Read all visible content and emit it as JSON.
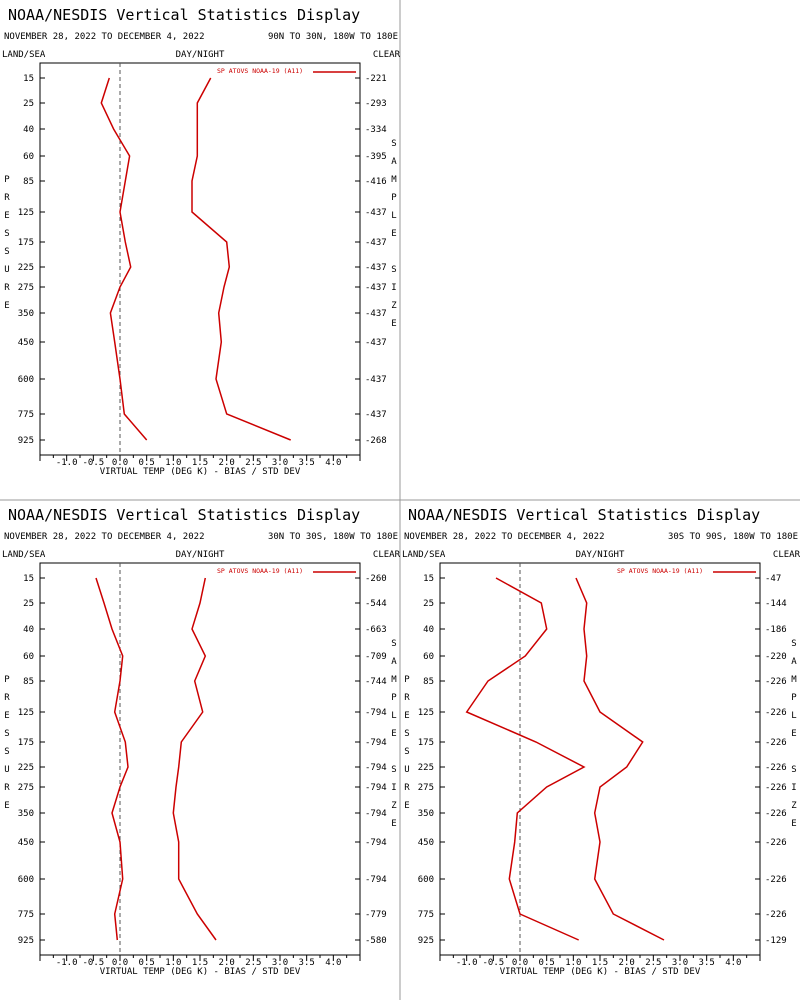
{
  "layout_labels": {
    "land_sea": "LAND/SEA",
    "day_night": "DAY/NIGHT",
    "clear": "CLEAR",
    "pressure_letters": [
      "P",
      "R",
      "E",
      "S",
      "S",
      "U",
      "R",
      "E"
    ],
    "sample_letters": [
      "S",
      "A",
      "M",
      "P",
      "L",
      "E"
    ],
    "size_letters": [
      "S",
      "I",
      "Z",
      "E"
    ]
  },
  "colors": {
    "series": "#cc0000",
    "axis": "#000000",
    "zero_line": "#555555",
    "separator": "#999999"
  },
  "chart_data": [
    {
      "type": "line",
      "title": "NOAA/NESDIS Vertical Statistics Display",
      "date_range": "NOVEMBER 28, 2022 TO DECEMBER 4, 2022",
      "region": "90N TO 30N, 180W TO 180E",
      "xlabel": "VIRTUAL TEMP (DEG K) - BIAS / STD DEV",
      "ylabel": "PRESSURE",
      "y2label": "SAMPLE SIZE",
      "xlim": [
        -1.5,
        4.5
      ],
      "xticks": [
        -1.0,
        -0.5,
        0.0,
        0.5,
        1.0,
        1.5,
        2.0,
        2.5,
        3.0,
        3.5,
        4.0
      ],
      "pressure_levels": [
        "15",
        "25",
        "40",
        "60",
        "85",
        "125",
        "175",
        "225",
        "275",
        "350",
        "450",
        "600",
        "775",
        "925"
      ],
      "sample_size": [
        "221",
        "293",
        "334",
        "395",
        "416",
        "437",
        "437",
        "437",
        "437",
        "437",
        "437",
        "437",
        "437",
        "268"
      ],
      "series": [
        {
          "name": "SP ATOVS NOAA-19 (A11)",
          "bias": [
            -0.2,
            -0.35,
            -0.12,
            0.18,
            0.1,
            0.0,
            0.1,
            0.2,
            0.0,
            -0.18,
            -0.1,
            0.0,
            0.08,
            0.5
          ],
          "stddev": [
            1.7,
            1.45,
            1.45,
            1.45,
            1.35,
            1.35,
            2.0,
            2.05,
            1.95,
            1.85,
            1.9,
            1.8,
            2.0,
            3.2
          ]
        }
      ]
    },
    {
      "type": "line",
      "title": "NOAA/NESDIS Vertical Statistics Display",
      "date_range": "NOVEMBER 28, 2022 TO DECEMBER 4, 2022",
      "region": "30N TO 30S, 180W TO 180E",
      "xlabel": "VIRTUAL TEMP (DEG K) - BIAS / STD DEV",
      "ylabel": "PRESSURE",
      "y2label": "SAMPLE SIZE",
      "xlim": [
        -1.5,
        4.5
      ],
      "xticks": [
        -1.0,
        -0.5,
        0.0,
        0.5,
        1.0,
        1.5,
        2.0,
        2.5,
        3.0,
        3.5,
        4.0
      ],
      "pressure_levels": [
        "15",
        "25",
        "40",
        "60",
        "85",
        "125",
        "175",
        "225",
        "275",
        "350",
        "450",
        "600",
        "775",
        "925"
      ],
      "sample_size": [
        "260",
        "544",
        "663",
        "709",
        "744",
        "794",
        "794",
        "794",
        "794",
        "794",
        "794",
        "794",
        "779",
        "580"
      ],
      "series": [
        {
          "name": "SP ATOVS NOAA-19 (A11)",
          "bias": [
            -0.45,
            -0.3,
            -0.15,
            0.05,
            0.0,
            -0.1,
            0.1,
            0.15,
            0.0,
            -0.15,
            0.0,
            0.05,
            -0.1,
            -0.05
          ],
          "stddev": [
            1.6,
            1.5,
            1.35,
            1.6,
            1.4,
            1.55,
            1.15,
            1.1,
            1.05,
            1.0,
            1.1,
            1.1,
            1.45,
            1.8
          ]
        }
      ]
    },
    {
      "type": "line",
      "title": "NOAA/NESDIS Vertical Statistics Display",
      "date_range": "NOVEMBER 28, 2022 TO DECEMBER 4, 2022",
      "region": "30S TO 90S, 180W TO 180E",
      "xlabel": "VIRTUAL TEMP (DEG K) - BIAS / STD DEV",
      "ylabel": "PRESSURE",
      "y2label": "SAMPLE SIZE",
      "xlim": [
        -1.5,
        4.5
      ],
      "xticks": [
        -1.0,
        -0.5,
        0.0,
        0.5,
        1.0,
        1.5,
        2.0,
        2.5,
        3.0,
        3.5,
        4.0
      ],
      "pressure_levels": [
        "15",
        "25",
        "40",
        "60",
        "85",
        "125",
        "175",
        "225",
        "275",
        "350",
        "450",
        "600",
        "775",
        "925"
      ],
      "sample_size": [
        "47",
        "144",
        "186",
        "220",
        "226",
        "226",
        "226",
        "226",
        "226",
        "226",
        "226",
        "226",
        "226",
        "129"
      ],
      "series": [
        {
          "name": "SP ATOVS NOAA-19 (A11)",
          "bias": [
            -0.45,
            0.4,
            0.5,
            0.1,
            -0.6,
            -1.0,
            0.3,
            1.2,
            0.5,
            -0.05,
            -0.1,
            -0.2,
            0.0,
            1.1
          ],
          "stddev": [
            1.05,
            1.25,
            1.2,
            1.25,
            1.2,
            1.5,
            2.3,
            2.0,
            1.5,
            1.4,
            1.5,
            1.4,
            1.75,
            2.7
          ]
        }
      ]
    }
  ]
}
